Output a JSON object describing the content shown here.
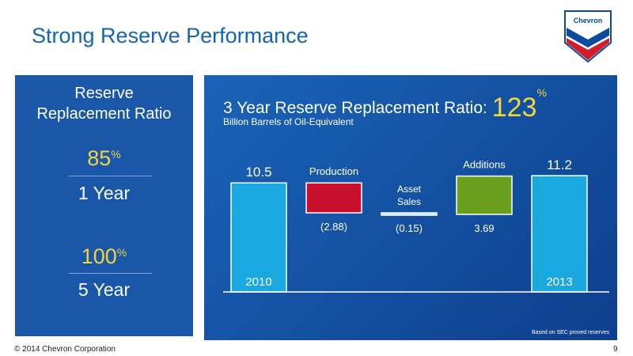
{
  "slide": {
    "title": "Strong Reserve Performance",
    "logo_text": "Chevron",
    "footer_copyright": "© 2014 Chevron Corporation",
    "page_number": "9"
  },
  "left_panel": {
    "title_line1": "Reserve",
    "title_line2": "Replacement Ratio",
    "metrics": [
      {
        "value": "85",
        "unit": "%",
        "period": "1 Year"
      },
      {
        "value": "100",
        "unit": "%",
        "period": "5 Year"
      }
    ]
  },
  "chart_panel": {
    "title": "3 Year Reserve Replacement Ratio:",
    "highlight_value": "123",
    "highlight_unit": "%",
    "subtitle": "Billion Barrels of Oil-Equivalent",
    "footnote": "Based on SEC proved reserves"
  },
  "colors": {
    "brand_blue": "#1464b4",
    "panel_blue": "#1a57a8",
    "accent_yellow": "#f2d53c",
    "bar_cyan": "#19a8e0",
    "bar_red": "#c8102e",
    "bar_green": "#6a9e1f",
    "bar_asset": "#c8dff5"
  },
  "chart_data": {
    "type": "bar",
    "subtype": "waterfall",
    "title": "3 Year Reserve Replacement Ratio: 123%",
    "subtitle": "Billion Barrels of Oil-Equivalent",
    "categories": [
      "2010",
      "Production",
      "Asset Sales",
      "Additions",
      "2013"
    ],
    "values": [
      10.5,
      -2.88,
      -0.15,
      3.69,
      11.2
    ],
    "value_labels": [
      "10.5",
      "(2.88)",
      "(0.15)",
      "3.69",
      "11.2"
    ],
    "kinds": [
      "total",
      "decrease",
      "decrease",
      "increase",
      "total"
    ],
    "bar_colors": [
      "#19a8e0",
      "#c8102e",
      "#c8dff5",
      "#6a9e1f",
      "#19a8e0"
    ],
    "label_positions": [
      "above",
      "below",
      "below",
      "below",
      "above"
    ],
    "category_label_positions": [
      "inside-bottom",
      "above",
      "above",
      "above",
      "inside-bottom"
    ],
    "ylim": [
      0,
      12.5
    ],
    "grid": false,
    "legend": "none"
  }
}
